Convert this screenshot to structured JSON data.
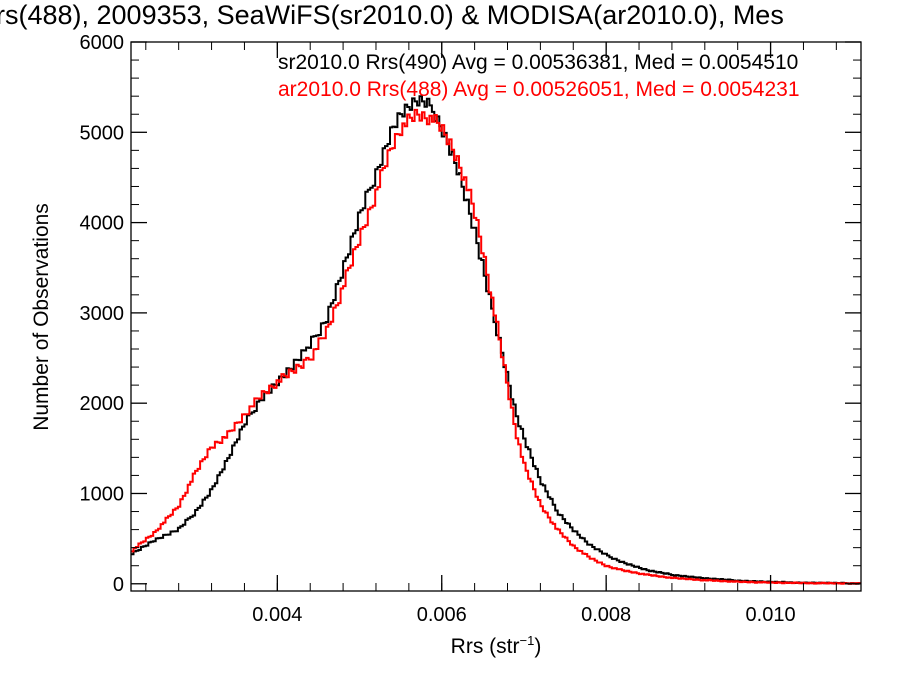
{
  "chart_data": {
    "type": "line",
    "title": "rs(488), 2009353, SeaWiFS(sr2010.0) & MODISA(ar2010.0), Mes",
    "xlabel": "Rrs (str",
    "xlabel_sup": "−1",
    "xlabel_close": ")",
    "ylabel": "Number of Observations",
    "xlim": [
      0.00222,
      0.0111
    ],
    "ylim": [
      -80,
      6000
    ],
    "xticks": [
      0.004,
      0.006,
      0.008,
      0.01
    ],
    "xtick_labels": [
      "0.004",
      "0.006",
      "0.008",
      "0.010"
    ],
    "yticks": [
      0,
      1000,
      2000,
      3000,
      4000,
      5000,
      6000
    ],
    "ytick_labels": [
      "0",
      "1000",
      "2000",
      "3000",
      "4000",
      "5000",
      "6000"
    ],
    "series": [
      {
        "label": "sr2010.0 Rrs(490) Avg = 0.00536381, Med = 0.0054510",
        "color": "#000000",
        "x": [
          0.00222,
          0.0025,
          0.0028,
          0.003,
          0.0032,
          0.0034,
          0.0036,
          0.0038,
          0.004,
          0.0042,
          0.0044,
          0.0046,
          0.0048,
          0.005,
          0.0052,
          0.0053,
          0.0054,
          0.0055,
          0.0056,
          0.0057,
          0.0058,
          0.0059,
          0.006,
          0.0061,
          0.0062,
          0.0063,
          0.0064,
          0.0065,
          0.0066,
          0.0067,
          0.0068,
          0.0069,
          0.007,
          0.0072,
          0.0074,
          0.0076,
          0.0078,
          0.008,
          0.0082,
          0.0085,
          0.0088,
          0.0092,
          0.0096,
          0.01,
          0.0104,
          0.0108,
          0.0111
        ],
        "y": [
          330,
          480,
          600,
          790,
          1040,
          1380,
          1760,
          2050,
          2230,
          2420,
          2640,
          2940,
          3480,
          4060,
          4550,
          4800,
          5050,
          5200,
          5280,
          5340,
          5320,
          5250,
          5060,
          4830,
          4580,
          4250,
          3900,
          3500,
          3080,
          2720,
          2300,
          1900,
          1620,
          1140,
          810,
          600,
          430,
          320,
          240,
          150,
          100,
          60,
          35,
          20,
          12,
          8,
          5
        ]
      },
      {
        "label": "ar2010.0 Rrs(488) Avg = 0.00526051, Med = 0.0054231",
        "color": "#ff0000",
        "x": [
          0.00222,
          0.0025,
          0.0028,
          0.003,
          0.0032,
          0.0034,
          0.0036,
          0.0038,
          0.004,
          0.0042,
          0.0044,
          0.0046,
          0.0048,
          0.005,
          0.0052,
          0.0053,
          0.0054,
          0.0055,
          0.0056,
          0.0057,
          0.0058,
          0.0059,
          0.006,
          0.0061,
          0.0062,
          0.0063,
          0.0064,
          0.0065,
          0.0066,
          0.0067,
          0.0068,
          0.0069,
          0.007,
          0.0072,
          0.0074,
          0.0076,
          0.0078,
          0.008,
          0.0082,
          0.0085,
          0.0088,
          0.0092,
          0.0096,
          0.01,
          0.0104,
          0.0108,
          0.0111
        ],
        "y": [
          360,
          560,
          860,
          1220,
          1520,
          1650,
          1870,
          2080,
          2230,
          2360,
          2500,
          2790,
          3280,
          3820,
          4330,
          4610,
          4860,
          5040,
          5130,
          5200,
          5170,
          5140,
          5040,
          4880,
          4690,
          4440,
          4120,
          3700,
          3220,
          2720,
          2200,
          1700,
          1320,
          880,
          610,
          420,
          290,
          200,
          150,
          100,
          65,
          40,
          22,
          13,
          8,
          5,
          3
        ]
      }
    ],
    "grid": false,
    "legend_position": "top-right"
  }
}
